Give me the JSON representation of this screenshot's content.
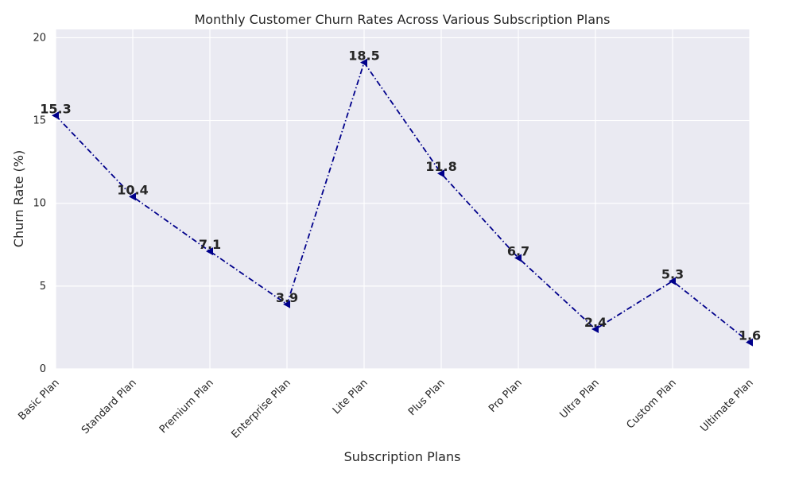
{
  "chart_data": {
    "type": "line",
    "title": "Monthly Customer Churn Rates Across Various Subscription Plans",
    "xlabel": "Subscription Plans",
    "ylabel": "Churn Rate (%)",
    "categories": [
      "Basic Plan",
      "Standard Plan",
      "Premium Plan",
      "Enterprise Plan",
      "Lite Plan",
      "Plus Plan",
      "Pro Plan",
      "Ultra Plan",
      "Custom Plan",
      "Ultimate Plan"
    ],
    "series": [
      {
        "values": [
          15.3,
          10.4,
          7.1,
          3.9,
          18.5,
          11.8,
          6.7,
          2.4,
          5.3,
          1.6
        ],
        "color": "#00008b",
        "marker": "triangle-left",
        "linestyle": "dash-dot"
      }
    ],
    "data_labels": [
      "15.3",
      "10.4",
      "7.1",
      "3.9",
      "18.5",
      "11.8",
      "6.7",
      "2.4",
      "5.3",
      "1.6"
    ],
    "ylim": [
      0,
      20.5
    ],
    "yticks": [
      0,
      5,
      10,
      15,
      20
    ],
    "grid": true,
    "legend": "none",
    "background": "#eaeaf2"
  }
}
